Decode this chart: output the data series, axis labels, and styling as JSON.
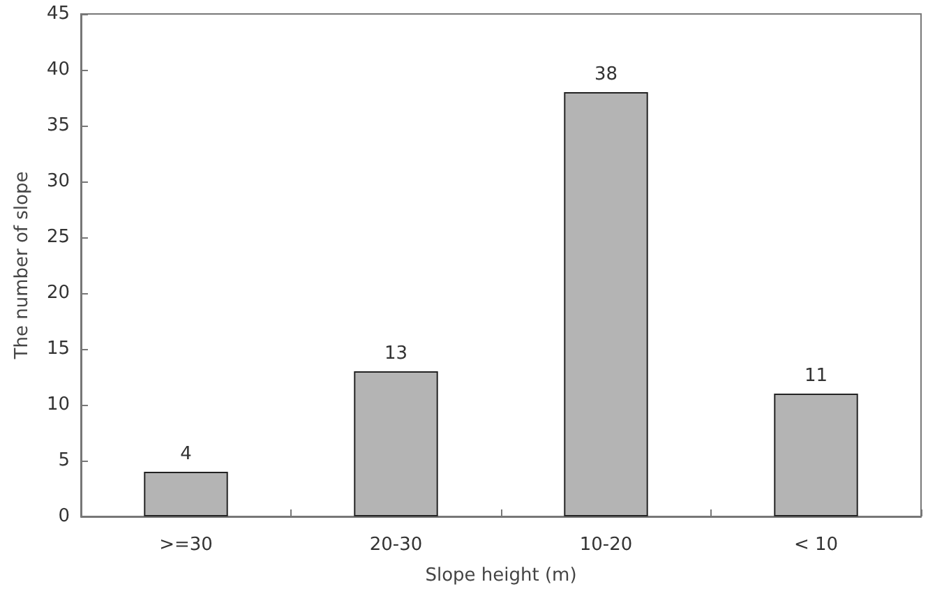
{
  "chart_data": {
    "type": "bar",
    "xlabel": "Slope height (m)",
    "ylabel": "The number of slope",
    "categories": [
      ">=30",
      "20-30",
      "10-20",
      "< 10"
    ],
    "values": [
      4,
      13,
      38,
      11
    ],
    "color": "#b4b4b4",
    "ylim": [
      0,
      45
    ],
    "yticks": [
      0,
      5,
      10,
      15,
      20,
      25,
      30,
      35,
      40,
      45
    ],
    "grid": false,
    "data_labels": true
  }
}
